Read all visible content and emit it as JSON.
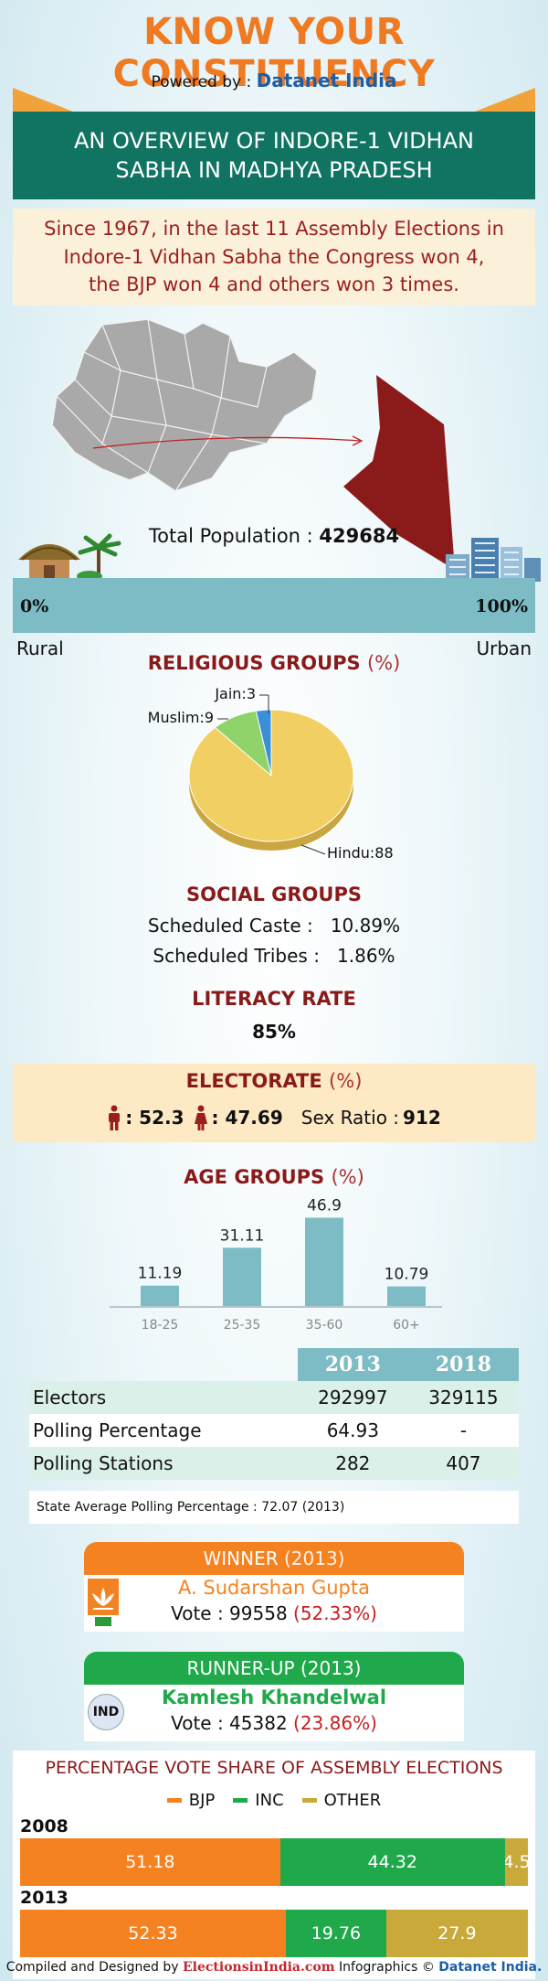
{
  "header": {
    "title": "KNOW YOUR CONSTITUENCY",
    "powered_prefix": "Powered by : ",
    "powered_brand": "Datanet India"
  },
  "banner": {
    "line1": "AN OVERVIEW OF INDORE-1 VIDHAN",
    "line2": "SABHA IN MADHYA PRADESH"
  },
  "summary": {
    "line1": "Since 1967, in the last 11 Assembly Elections in",
    "line2": "Indore-1 Vidhan Sabha the Congress won 4,",
    "line3": "the BJP won 4 and others won 3 times."
  },
  "colors": {
    "accent": "#ef7a22",
    "banner": "#117462",
    "map": "#8b1a1a",
    "bar": "#7dbcc4",
    "bjp": "#f58220",
    "inc": "#20a94a",
    "other": "#c9a93a",
    "pie_hindu": "#f2cf63",
    "pie_muslim": "#8fd36a",
    "pie_jain": "#3b8fd6"
  },
  "population": {
    "label": "Total Population : ",
    "value": "429684",
    "rural_pct": "0%",
    "urban_pct": "100%",
    "rural_label": "Rural",
    "urban_label": "Urban"
  },
  "religion": {
    "heading": "RELIGIOUS GROUPS",
    "unit": "(%)",
    "labels": {
      "jain": "Jain:3",
      "muslim": "Muslim:9",
      "hindu": "Hindu:88"
    }
  },
  "social": {
    "heading": "SOCIAL GROUPS",
    "sc": "Scheduled Caste :   10.89%",
    "st": "Scheduled Tribes :   1.86%"
  },
  "literacy": {
    "heading": "LITERACY RATE",
    "value": "85%"
  },
  "electorate": {
    "heading": "ELECTORATE",
    "unit": "(%)",
    "male": ": 52.3",
    "female": ": 47.69",
    "sex_ratio_label": "Sex Ratio : ",
    "sex_ratio": "912"
  },
  "age": {
    "heading": "AGE GROUPS",
    "unit": "(%)"
  },
  "chart_data": {
    "type": "bar",
    "title": "AGE GROUPS (%)",
    "categories": [
      "18-25",
      "25-35",
      "35-60",
      "60+"
    ],
    "values": [
      11.19,
      31.11,
      46.9,
      10.79
    ]
  },
  "table": {
    "years": [
      "2013",
      "2018"
    ],
    "rows": [
      {
        "label": "Electors",
        "v2013": "292997",
        "v2018": "329115"
      },
      {
        "label": "Polling Percentage",
        "v2013": "64.93",
        "v2018": "-"
      },
      {
        "label": "Polling Stations",
        "v2013": "282",
        "v2018": "407"
      }
    ],
    "note": "State Average Polling Percentage : 72.07 (2013)"
  },
  "winner": {
    "heading": "WINNER",
    "year": "(2013)",
    "name": "A. Sudarshan Gupta",
    "vote_label": "Vote : 99558 ",
    "vote_pct": "(52.33%)",
    "party_icon": "lotus-icon"
  },
  "runner_up": {
    "heading": "RUNNER-UP",
    "year": "(2013)",
    "name": "Kamlesh Khandelwal",
    "vote_label": "Vote : 45382 ",
    "vote_pct": "(23.86%)",
    "badge": "IND"
  },
  "vote_share": {
    "heading": "PERCENTAGE VOTE SHARE OF ASSEMBLY ELECTIONS",
    "legend": [
      "BJP",
      "INC",
      "OTHER"
    ],
    "rows": [
      {
        "year": "2008",
        "bjp": 51.18,
        "inc": 44.32,
        "other": 4.5,
        "bjp_label": "51.18",
        "inc_label": "44.32",
        "other_label": "4.5"
      },
      {
        "year": "2013",
        "bjp": 52.33,
        "inc": 19.76,
        "other": 27.9,
        "bjp_label": "52.33",
        "inc_label": "19.76",
        "other_label": "27.9"
      }
    ]
  },
  "footer": {
    "prefix": "Compiled and Designed by ",
    "brand1": "ElectionsinIndia.com",
    "middle": " Infographics © ",
    "brand2": "Datanet India."
  }
}
